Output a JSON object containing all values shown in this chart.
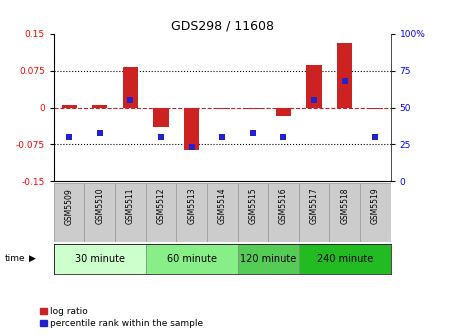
{
  "title": "GDS298 / 11608",
  "samples": [
    "GSM5509",
    "GSM5510",
    "GSM5511",
    "GSM5512",
    "GSM5513",
    "GSM5514",
    "GSM5515",
    "GSM5516",
    "GSM5517",
    "GSM5518",
    "GSM5519"
  ],
  "log_ratio": [
    0.005,
    0.005,
    0.082,
    -0.04,
    -0.087,
    -0.004,
    -0.004,
    -0.018,
    0.086,
    0.13,
    -0.004
  ],
  "percentile": [
    30,
    33,
    55,
    30,
    23,
    30,
    33,
    30,
    55,
    68,
    30
  ],
  "ylim_left": [
    -0.15,
    0.15
  ],
  "ylim_right": [
    0,
    100
  ],
  "yticks_left": [
    -0.15,
    -0.075,
    0,
    0.075,
    0.15
  ],
  "yticks_right": [
    0,
    25,
    50,
    75,
    100
  ],
  "dotted_lines": [
    -0.075,
    0.075
  ],
  "groups": [
    {
      "label": "30 minute",
      "start": 0,
      "end": 3,
      "color": "#ccffcc"
    },
    {
      "label": "60 minute",
      "start": 3,
      "end": 6,
      "color": "#88ee88"
    },
    {
      "label": "120 minute",
      "start": 6,
      "end": 8,
      "color": "#55cc55"
    },
    {
      "label": "240 minute",
      "start": 8,
      "end": 11,
      "color": "#22bb22"
    }
  ],
  "bar_color": "#cc2222",
  "point_color": "#2222cc",
  "bar_width": 0.5,
  "point_size": 25,
  "legend_bar_label": "log ratio",
  "legend_point_label": "percentile rank within the sample",
  "sample_bg": "#cccccc",
  "title_fontsize": 9,
  "tick_fontsize": 6.5,
  "sample_fontsize": 5.5,
  "group_fontsize": 7,
  "legend_fontsize": 6.5
}
